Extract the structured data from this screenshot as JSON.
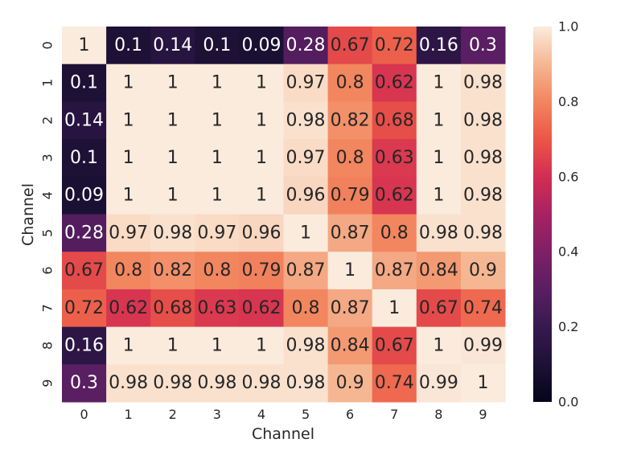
{
  "chart_data": {
    "type": "heatmap",
    "xlabel": "Channel",
    "ylabel": "Channel",
    "x_categories": [
      "0",
      "1",
      "2",
      "3",
      "4",
      "5",
      "6",
      "7",
      "8",
      "9"
    ],
    "y_categories": [
      "0",
      "1",
      "2",
      "3",
      "4",
      "5",
      "6",
      "7",
      "8",
      "9"
    ],
    "values": [
      [
        1,
        0.1,
        0.14,
        0.1,
        0.09,
        0.28,
        0.67,
        0.72,
        0.16,
        0.3
      ],
      [
        0.1,
        1,
        1,
        1,
        1,
        0.97,
        0.8,
        0.62,
        1,
        0.98
      ],
      [
        0.14,
        1,
        1,
        1,
        1,
        0.98,
        0.82,
        0.68,
        1,
        0.98
      ],
      [
        0.1,
        1,
        1,
        1,
        1,
        0.97,
        0.8,
        0.63,
        1,
        0.98
      ],
      [
        0.09,
        1,
        1,
        1,
        1,
        0.96,
        0.79,
        0.62,
        1,
        0.98
      ],
      [
        0.28,
        0.97,
        0.98,
        0.97,
        0.96,
        1,
        0.87,
        0.8,
        0.98,
        0.98
      ],
      [
        0.67,
        0.8,
        0.82,
        0.8,
        0.79,
        0.87,
        1,
        0.87,
        0.84,
        0.9
      ],
      [
        0.72,
        0.62,
        0.68,
        0.63,
        0.62,
        0.8,
        0.87,
        1,
        0.67,
        0.74
      ],
      [
        0.16,
        1,
        1,
        1,
        1,
        0.98,
        0.84,
        0.67,
        1,
        0.99
      ],
      [
        0.3,
        0.98,
        0.98,
        0.98,
        0.98,
        0.98,
        0.9,
        0.74,
        0.99,
        1
      ]
    ],
    "cell_labels": [
      [
        "1",
        "0.1",
        "0.14",
        "0.1",
        "0.09",
        "0.28",
        "0.67",
        "0.72",
        "0.16",
        "0.3"
      ],
      [
        "0.1",
        "1",
        "1",
        "1",
        "1",
        "0.97",
        "0.8",
        "0.62",
        "1",
        "0.98"
      ],
      [
        "0.14",
        "1",
        "1",
        "1",
        "1",
        "0.98",
        "0.82",
        "0.68",
        "1",
        "0.98"
      ],
      [
        "0.1",
        "1",
        "1",
        "1",
        "1",
        "0.97",
        "0.8",
        "0.63",
        "1",
        "0.98"
      ],
      [
        "0.09",
        "1",
        "1",
        "1",
        "1",
        "0.96",
        "0.79",
        "0.62",
        "1",
        "0.98"
      ],
      [
        "0.28",
        "0.97",
        "0.98",
        "0.97",
        "0.96",
        "1",
        "0.87",
        "0.8",
        "0.98",
        "0.98"
      ],
      [
        "0.67",
        "0.8",
        "0.82",
        "0.8",
        "0.79",
        "0.87",
        "1",
        "0.87",
        "0.84",
        "0.9"
      ],
      [
        "0.72",
        "0.62",
        "0.68",
        "0.63",
        "0.62",
        "0.8",
        "0.87",
        "1",
        "0.67",
        "0.74"
      ],
      [
        "0.16",
        "1",
        "1",
        "1",
        "1",
        "0.98",
        "0.84",
        "0.67",
        "1",
        "0.99"
      ],
      [
        "0.3",
        "0.98",
        "0.98",
        "0.98",
        "0.98",
        "0.98",
        "0.9",
        "0.74",
        "0.99",
        "1"
      ]
    ],
    "value_range": [
      0,
      1
    ],
    "colormap": "rocket",
    "colorbar": {
      "ticks": [
        0.0,
        0.2,
        0.4,
        0.6,
        0.8,
        1.0
      ],
      "tick_labels": [
        "0.0",
        "0.2",
        "0.4",
        "0.6",
        "0.8",
        "1.0"
      ],
      "placement": "right"
    },
    "grid": false
  }
}
